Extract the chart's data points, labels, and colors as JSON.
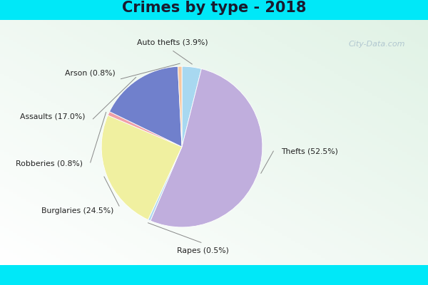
{
  "title": "Crimes by type - 2018",
  "labels": [
    "Thefts",
    "Burglaries",
    "Rapes",
    "Robberies",
    "Assaults",
    "Arson",
    "Auto thefts"
  ],
  "values": [
    52.5,
    24.5,
    0.5,
    0.8,
    17.0,
    0.8,
    3.9
  ],
  "colors": [
    "#c0aedd",
    "#f0f0a0",
    "#b0d8f0",
    "#f0a0a8",
    "#7080cc",
    "#f8c8a0",
    "#a8d8f0"
  ],
  "label_texts": [
    "Thefts (52.5%)",
    "Burglaries (24.5%)",
    "Rapes (0.5%)",
    "Robberies (0.8%)",
    "Assaults (17.0%)",
    "Arson (0.8%)",
    "Auto thefts (3.9%)"
  ],
  "title_fontsize": 15,
  "border_color": "#00e8f8",
  "bg_color": "#d8efe0",
  "watermark": "City-Data.com",
  "label_color": "#222222",
  "line_color": "#888888"
}
